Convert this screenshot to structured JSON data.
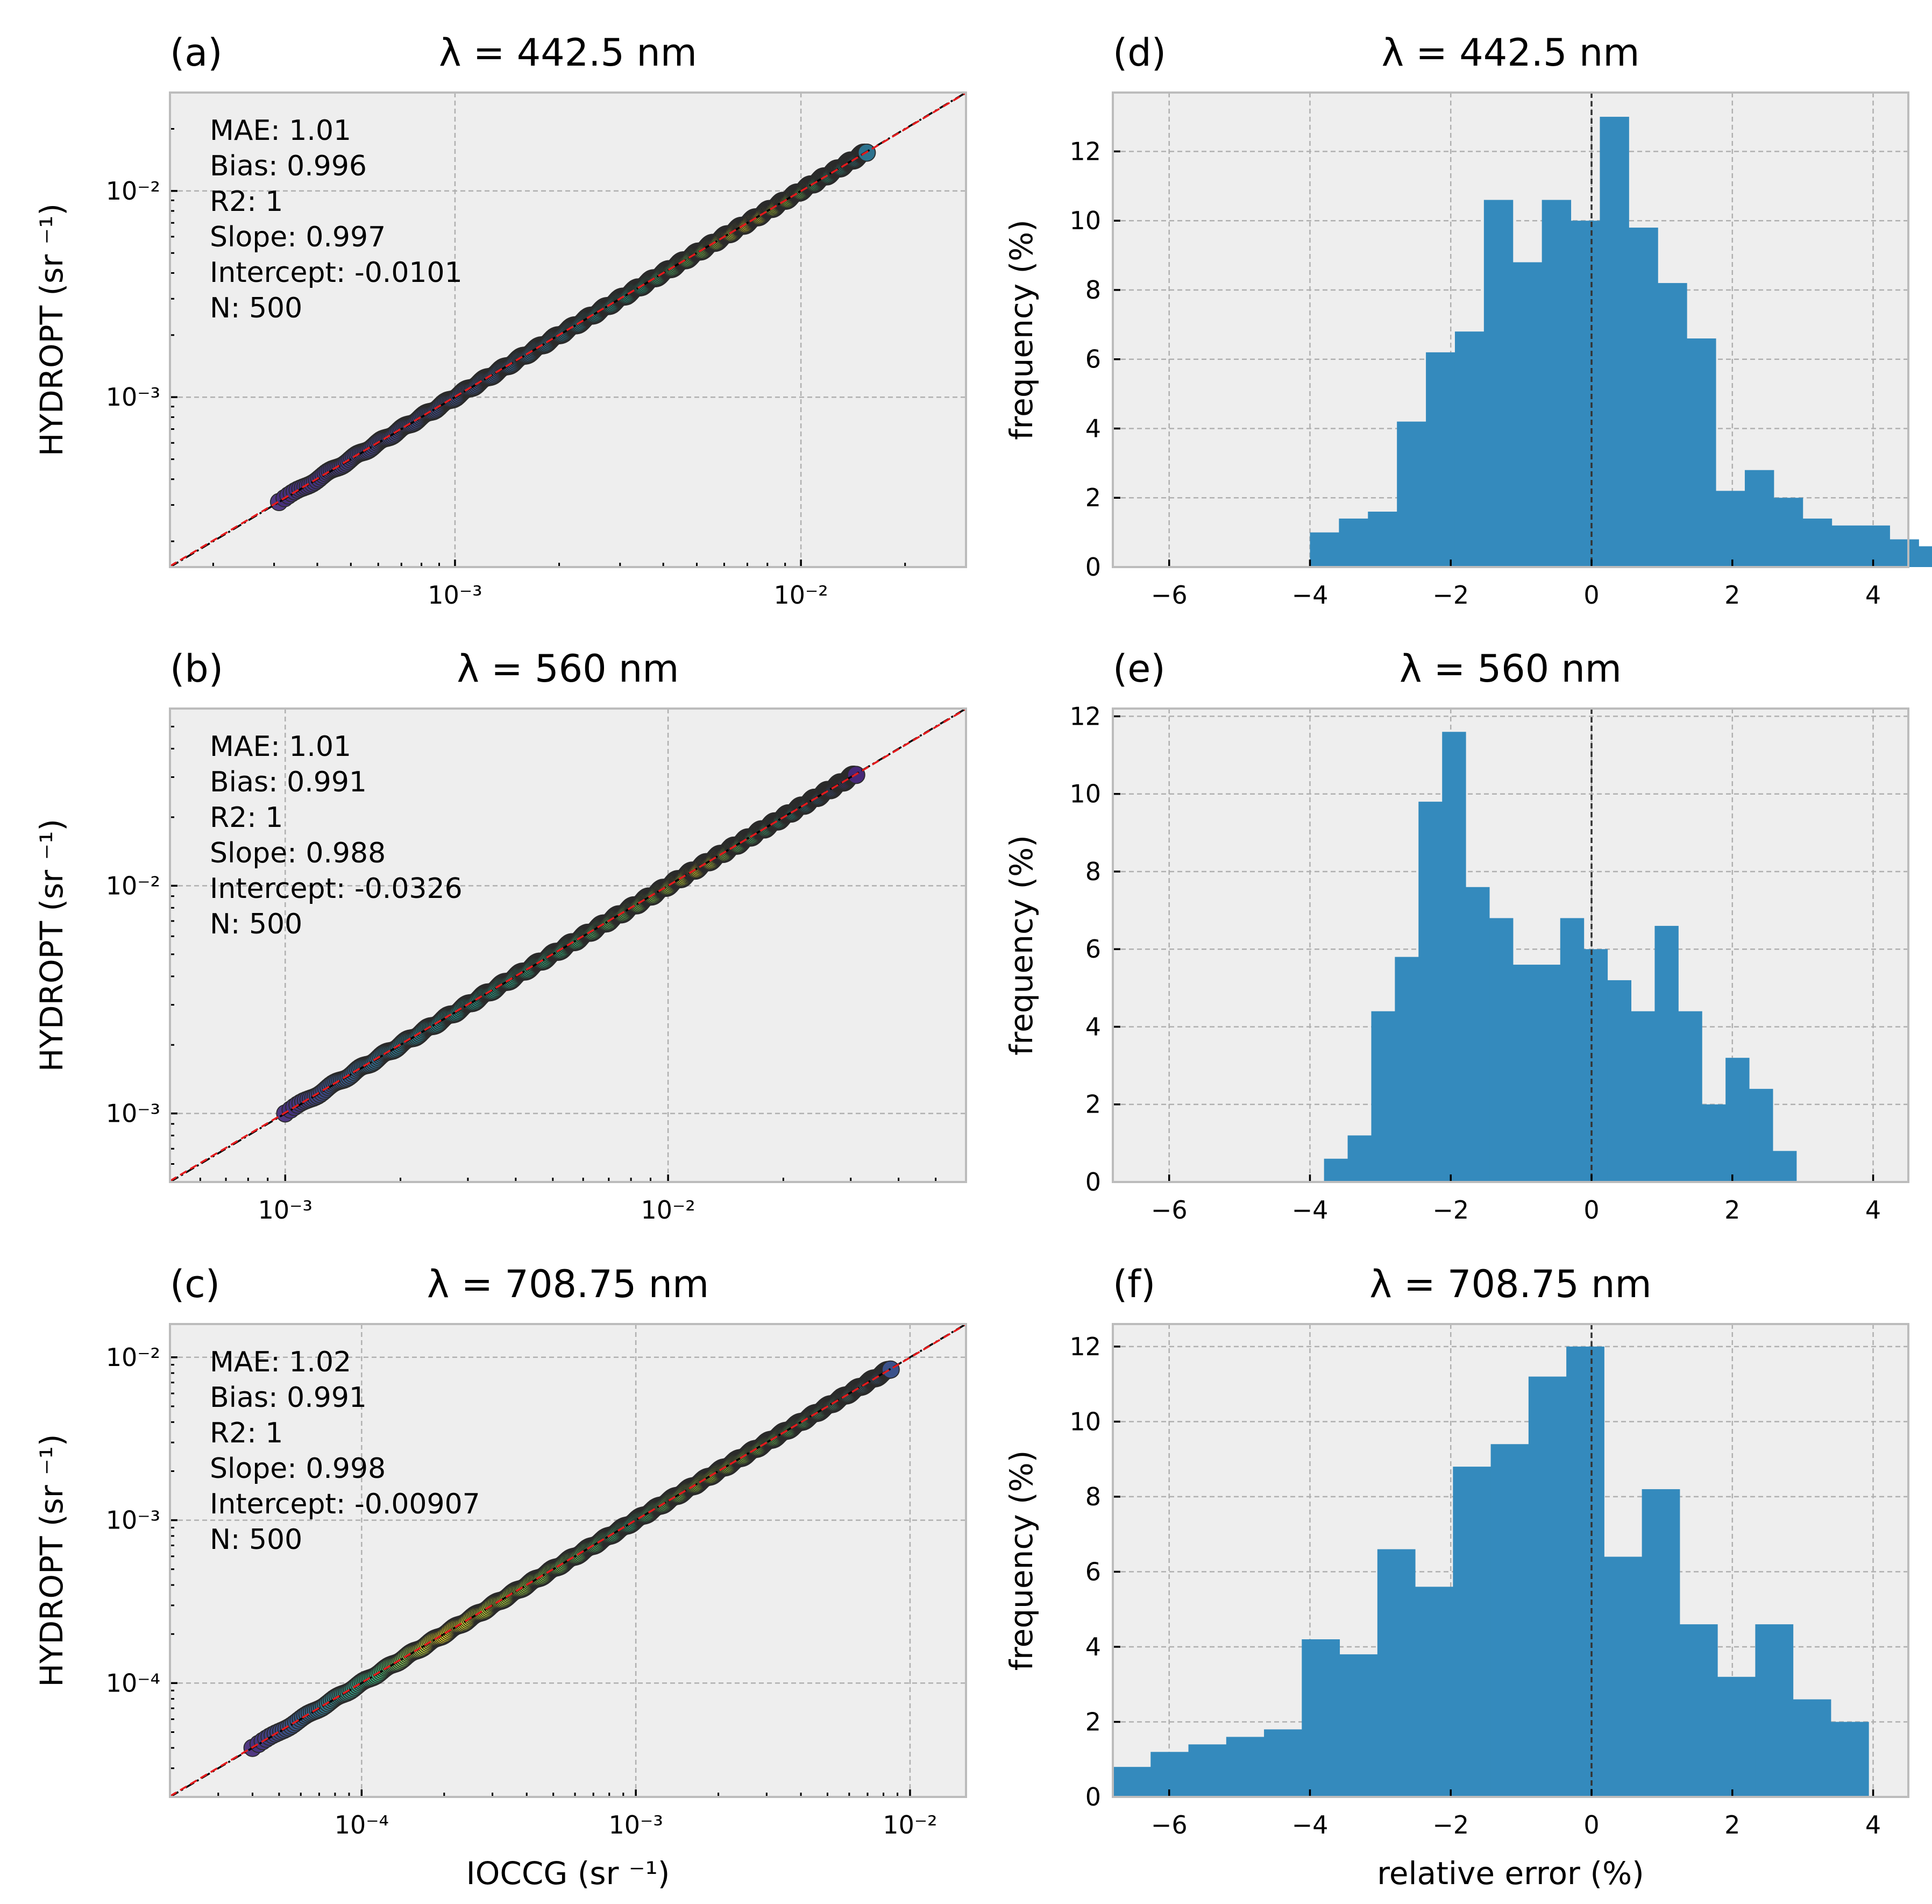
{
  "figure": {
    "shared_scatter_xlabel": "IOCCG (sr ⁻¹)",
    "shared_hist_xlabel": "relative error (%)"
  },
  "chart_data": [
    {
      "id": "a",
      "type": "scatter",
      "panel_label": "(a)",
      "title": "λ = 442.5 nm",
      "ylabel": "HYDROPT (sr ⁻¹)",
      "xlabel": "",
      "xscale": "log",
      "yscale": "log",
      "xlim": [
        0.00015,
        0.03
      ],
      "ylim": [
        0.00015,
        0.03
      ],
      "xticks": [
        0.001,
        0.01
      ],
      "xtick_labels": [
        "10⁻³",
        "10⁻²"
      ],
      "yticks": [
        0.001,
        0.01
      ],
      "ytick_labels": [
        "10⁻³",
        "10⁻²"
      ],
      "grid": true,
      "stats": [
        "MAE: 1.01",
        "Bias:  0.996",
        "R2: 1",
        "Slope: 0.997",
        "Intercept: -0.0101",
        "N: 500"
      ],
      "one_to_one_line": true,
      "fit_line": true,
      "points_range": [
        0.00031,
        0.0155
      ],
      "n_points": 500,
      "color_sequence": [
        [
          0.0,
          "#472d7b"
        ],
        [
          0.35,
          "#3a538b"
        ],
        [
          0.5,
          "#2a788e"
        ],
        [
          0.62,
          "#22a884"
        ],
        [
          0.72,
          "#7ad151"
        ],
        [
          0.8,
          "#fde725"
        ],
        [
          0.87,
          "#a2da37"
        ],
        [
          0.93,
          "#2db27d"
        ],
        [
          1.0,
          "#2c728e"
        ]
      ]
    },
    {
      "id": "b",
      "type": "scatter",
      "panel_label": "(b)",
      "title": "λ = 560 nm",
      "ylabel": "HYDROPT (sr ⁻¹)",
      "xlabel": "",
      "xscale": "log",
      "yscale": "log",
      "xlim": [
        0.0005,
        0.06
      ],
      "ylim": [
        0.0005,
        0.06
      ],
      "xticks": [
        0.001,
        0.01
      ],
      "xtick_labels": [
        "10⁻³",
        "10⁻²"
      ],
      "yticks": [
        0.001,
        0.01
      ],
      "ytick_labels": [
        "10⁻³",
        "10⁻²"
      ],
      "grid": true,
      "stats": [
        "MAE: 1.01",
        "Bias:  0.991",
        "R2: 1",
        "Slope: 0.988",
        "Intercept: -0.0326",
        "N: 500"
      ],
      "one_to_one_line": true,
      "fit_line": true,
      "points_range": [
        0.001,
        0.031
      ],
      "n_points": 500,
      "color_sequence": [
        [
          0.0,
          "#472d7b"
        ],
        [
          0.15,
          "#31688e"
        ],
        [
          0.3,
          "#21918c"
        ],
        [
          0.5,
          "#35b779"
        ],
        [
          0.66,
          "#8fd744"
        ],
        [
          0.73,
          "#fde725"
        ],
        [
          0.8,
          "#5ec962"
        ],
        [
          0.9,
          "#21918c"
        ],
        [
          1.0,
          "#482878"
        ]
      ]
    },
    {
      "id": "c",
      "type": "scatter",
      "panel_label": "(c)",
      "title": "λ = 708.75 nm",
      "ylabel": "HYDROPT (sr ⁻¹)",
      "xlabel": "IOCCG (sr ⁻¹)",
      "xscale": "log",
      "yscale": "log",
      "xlim": [
        2e-05,
        0.016
      ],
      "ylim": [
        2e-05,
        0.016
      ],
      "xticks": [
        0.0001,
        0.001,
        0.01
      ],
      "xtick_labels": [
        "10⁻⁴",
        "10⁻³",
        "10⁻²"
      ],
      "yticks": [
        0.0001,
        0.001,
        0.01
      ],
      "ytick_labels": [
        "10⁻⁴",
        "10⁻³",
        "10⁻²"
      ],
      "grid": true,
      "stats": [
        "MAE: 1.02",
        "Bias:  0.991",
        "R2: 1",
        "Slope: 0.998",
        "Intercept: -0.00907",
        "N: 500"
      ],
      "one_to_one_line": true,
      "fit_line": true,
      "points_range": [
        4e-05,
        0.0085
      ],
      "n_points": 500,
      "color_sequence": [
        [
          0.0,
          "#472d7b"
        ],
        [
          0.1,
          "#31688e"
        ],
        [
          0.2,
          "#35b779"
        ],
        [
          0.3,
          "#fde725"
        ],
        [
          0.45,
          "#8fd744"
        ],
        [
          0.6,
          "#2db27d"
        ],
        [
          0.72,
          "#b5de2b"
        ],
        [
          0.85,
          "#5ec962"
        ],
        [
          1.0,
          "#3b528b"
        ]
      ]
    },
    {
      "id": "d",
      "type": "bar",
      "subtype": "histogram",
      "panel_label": "(d)",
      "title": "λ = 442.5 nm",
      "ylabel": "frequency (%)",
      "xlabel": "",
      "xlim": [
        -6.8,
        4.5
      ],
      "ylim": [
        0,
        13.7
      ],
      "xticks": [
        -6,
        -4,
        -2,
        0,
        2,
        4
      ],
      "xtick_labels": [
        "−6",
        "−4",
        "−2",
        "0",
        "2",
        "4"
      ],
      "yticks": [
        0,
        2,
        4,
        6,
        8,
        10,
        12
      ],
      "ytick_labels": [
        "0",
        "2",
        "4",
        "6",
        "8",
        "10",
        "12"
      ],
      "grid": true,
      "vline_x": 0,
      "bar_color": "#348abd",
      "bin_start": -4.0,
      "bin_width": 0.4118,
      "values": [
        1.0,
        1.4,
        1.6,
        4.2,
        6.2,
        6.8,
        10.6,
        8.8,
        10.6,
        10.0,
        13.0,
        9.8,
        8.2,
        6.6,
        2.2,
        2.8,
        2.0,
        1.4,
        1.2,
        1.2,
        0.8,
        0.6
      ]
    },
    {
      "id": "e",
      "type": "bar",
      "subtype": "histogram",
      "panel_label": "(e)",
      "title": "λ = 560 nm",
      "ylabel": "frequency (%)",
      "xlabel": "",
      "xlim": [
        -6.8,
        4.5
      ],
      "ylim": [
        0,
        12.2
      ],
      "xticks": [
        -6,
        -4,
        -2,
        0,
        2,
        4
      ],
      "xtick_labels": [
        "−6",
        "−4",
        "−2",
        "0",
        "2",
        "4"
      ],
      "yticks": [
        0,
        2,
        4,
        6,
        8,
        10,
        12
      ],
      "ytick_labels": [
        "0",
        "2",
        "4",
        "6",
        "8",
        "10",
        "12"
      ],
      "grid": true,
      "vline_x": 0,
      "bar_color": "#348abd",
      "bin_start": -3.8,
      "bin_width": 0.3355,
      "values": [
        0.6,
        1.2,
        4.4,
        5.8,
        9.8,
        11.6,
        7.6,
        6.8,
        5.6,
        5.6,
        6.8,
        6.0,
        5.2,
        4.4,
        6.6,
        4.4,
        2.0,
        3.2,
        2.4,
        0.8
      ]
    },
    {
      "id": "f",
      "type": "bar",
      "subtype": "histogram",
      "panel_label": "(f)",
      "title": "λ = 708.75 nm",
      "ylabel": "frequency (%)",
      "xlabel": "relative error (%)",
      "xlim": [
        -6.8,
        4.5
      ],
      "ylim": [
        0,
        12.6
      ],
      "xticks": [
        -6,
        -4,
        -2,
        0,
        2,
        4
      ],
      "xtick_labels": [
        "−6",
        "−4",
        "−2",
        "0",
        "2",
        "4"
      ],
      "yticks": [
        0,
        2,
        4,
        6,
        8,
        10,
        12
      ],
      "ytick_labels": [
        "0",
        "2",
        "4",
        "6",
        "8",
        "10",
        "12"
      ],
      "grid": true,
      "vline_x": 0,
      "bar_color": "#348abd",
      "bin_start": -6.8,
      "bin_width": 0.5368,
      "values": [
        0.8,
        1.2,
        1.4,
        1.6,
        1.8,
        4.2,
        3.8,
        6.6,
        5.6,
        8.8,
        9.4,
        11.2,
        12.0,
        6.4,
        8.2,
        4.6,
        3.2,
        4.6,
        2.6,
        2.0
      ]
    }
  ]
}
